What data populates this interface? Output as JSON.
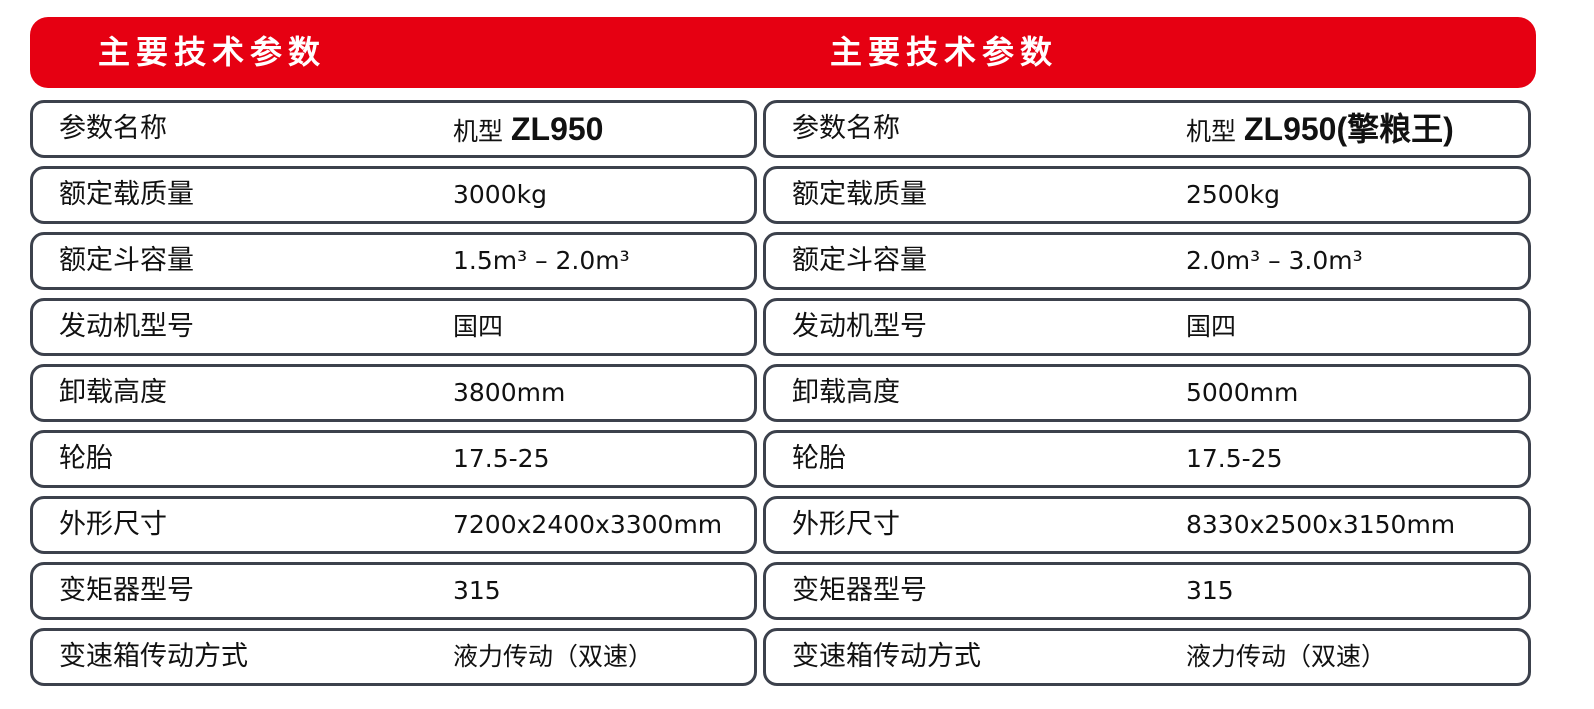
{
  "header": {
    "color": "#e60012",
    "left_title": "主要技术参数",
    "right_title": "主要技术参数"
  },
  "tables": [
    {
      "model_prefix": "机型",
      "model": "ZL950",
      "rows": [
        {
          "label": "参数名称",
          "value": ""
        },
        {
          "label": "额定载质量",
          "value": "3000kg"
        },
        {
          "label": "额定斗容量",
          "value": "1.5m³ – 2.0m³"
        },
        {
          "label": "发动机型号",
          "value": "国四"
        },
        {
          "label": "卸载高度",
          "value": "3800mm"
        },
        {
          "label": "轮胎",
          "value": "17.5-25"
        },
        {
          "label": "外形尺寸",
          "value": "7200x2400x3300mm"
        },
        {
          "label": "变矩器型号",
          "value": "315"
        },
        {
          "label": "变速箱传动方式",
          "value": "液力传动（双速）"
        }
      ]
    },
    {
      "model_prefix": "机型",
      "model": "ZL950(擎粮王)",
      "rows": [
        {
          "label": "参数名称",
          "value": ""
        },
        {
          "label": "额定载质量",
          "value": "2500kg"
        },
        {
          "label": "额定斗容量",
          "value": "2.0m³ – 3.0m³"
        },
        {
          "label": "发动机型号",
          "value": "国四"
        },
        {
          "label": "卸载高度",
          "value": "5000mm"
        },
        {
          "label": "轮胎",
          "value": "17.5-25"
        },
        {
          "label": "外形尺寸",
          "value": "8330x2500x3150mm"
        },
        {
          "label": "变矩器型号",
          "value": "315"
        },
        {
          "label": "变速箱传动方式",
          "value": "液力传动（双速）"
        }
      ]
    }
  ]
}
